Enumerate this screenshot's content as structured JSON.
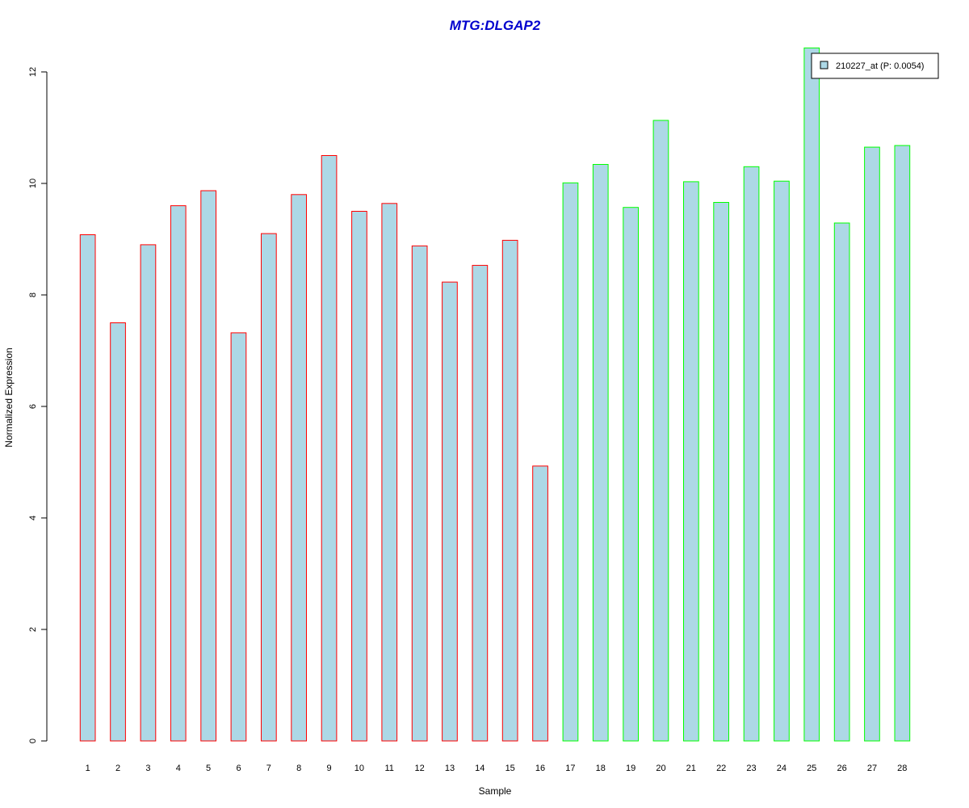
{
  "chart_data": {
    "type": "bar",
    "title": "MTG:DLGAP2",
    "xlabel": "Sample",
    "ylabel": "Normalized Expression",
    "categories": [
      "1",
      "2",
      "3",
      "4",
      "5",
      "6",
      "7",
      "8",
      "9",
      "10",
      "11",
      "12",
      "13",
      "14",
      "15",
      "16",
      "17",
      "18",
      "19",
      "20",
      "21",
      "22",
      "23",
      "24",
      "25",
      "26",
      "27",
      "28"
    ],
    "series": [
      {
        "name": "210227_at (P: 0.0054)",
        "values": [
          9.08,
          7.5,
          8.9,
          9.6,
          9.87,
          7.32,
          9.1,
          9.8,
          10.5,
          9.5,
          9.64,
          8.88,
          8.23,
          8.53,
          8.98,
          4.93,
          10.01,
          10.34,
          9.57,
          11.13,
          10.03,
          9.66,
          10.3,
          10.04,
          12.43,
          9.29,
          10.65,
          10.68
        ]
      }
    ],
    "group_border_colors": [
      "#ff0000",
      "#ff0000",
      "#ff0000",
      "#ff0000",
      "#ff0000",
      "#ff0000",
      "#ff0000",
      "#ff0000",
      "#ff0000",
      "#ff0000",
      "#ff0000",
      "#ff0000",
      "#ff0000",
      "#ff0000",
      "#ff0000",
      "#ff0000",
      "#00ff00",
      "#00ff00",
      "#00ff00",
      "#00ff00",
      "#00ff00",
      "#00ff00",
      "#00ff00",
      "#00ff00",
      "#00ff00",
      "#00ff00",
      "#00ff00",
      "#00ff00"
    ],
    "bar_fill": "#add8e6",
    "title_color": "#0000cd",
    "yticks": [
      0,
      2,
      4,
      6,
      8,
      10,
      12
    ],
    "ylim": [
      0,
      12.43
    ],
    "grid": false,
    "legend_position": "top-right"
  }
}
